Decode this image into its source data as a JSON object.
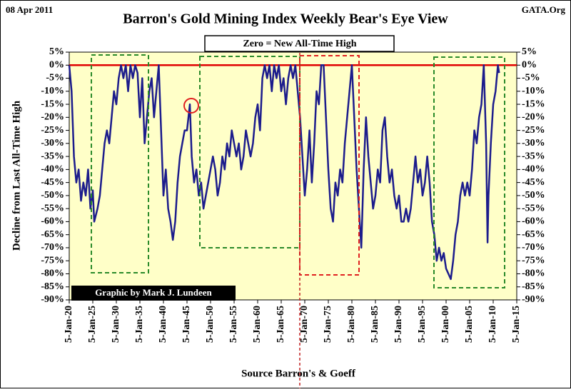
{
  "chart_data": {
    "type": "line",
    "title": "Barron's Gold Mining Index Weekly Bear's Eye View",
    "date_label": "08 Apr 2011",
    "source_label": "GATA.Org",
    "annotation": "Zero = New All-Time High",
    "credit": "Graphic by Mark J. Lundeen",
    "y_label": "Decline from Last All-Time High",
    "x_label": "Source Barron's & Goeff",
    "xlim": [
      1920,
      2015
    ],
    "xticks": [
      {
        "value": 1920,
        "label": "5-Jan-20"
      },
      {
        "value": 1925,
        "label": "5-Jan-25"
      },
      {
        "value": 1930,
        "label": "5-Jan-30"
      },
      {
        "value": 1935,
        "label": "5-Jan-35"
      },
      {
        "value": 1940,
        "label": "5-Jan-40"
      },
      {
        "value": 1945,
        "label": "5-Jan-45"
      },
      {
        "value": 1950,
        "label": "5-Jan-50"
      },
      {
        "value": 1955,
        "label": "5-Jan-55"
      },
      {
        "value": 1960,
        "label": "5-Jan-60"
      },
      {
        "value": 1965,
        "label": "5-Jan-65"
      },
      {
        "value": 1970,
        "label": "5-Jan-70"
      },
      {
        "value": 1975,
        "label": "5-Jan-75"
      },
      {
        "value": 1980,
        "label": "5-Jan-80"
      },
      {
        "value": 1985,
        "label": "5-Jan-85"
      },
      {
        "value": 1990,
        "label": "5-Jan-90"
      },
      {
        "value": 1995,
        "label": "5-Jan-95"
      },
      {
        "value": 2000,
        "label": "5-Jan-00"
      },
      {
        "value": 2005,
        "label": "5-Jan-05"
      },
      {
        "value": 2010,
        "label": "5-Jan-10"
      },
      {
        "value": 2015,
        "label": "5-Jan-15"
      }
    ],
    "ylim": [
      -90,
      5
    ],
    "yticks": [
      {
        "value": 5,
        "label": "5%"
      },
      {
        "value": 0,
        "label": "0%"
      },
      {
        "value": -5,
        "label": "-5%"
      },
      {
        "value": -10,
        "label": "-10%"
      },
      {
        "value": -15,
        "label": "-15%"
      },
      {
        "value": -20,
        "label": "-20%"
      },
      {
        "value": -25,
        "label": "-25%"
      },
      {
        "value": -30,
        "label": "-30%"
      },
      {
        "value": -35,
        "label": "-35%"
      },
      {
        "value": -40,
        "label": "-40%"
      },
      {
        "value": -45,
        "label": "-45%"
      },
      {
        "value": -50,
        "label": "-50%"
      },
      {
        "value": -55,
        "label": "-55%"
      },
      {
        "value": -60,
        "label": "-60%"
      },
      {
        "value": -65,
        "label": "-65%"
      },
      {
        "value": -70,
        "label": "-70%"
      },
      {
        "value": -75,
        "label": "-75%"
      },
      {
        "value": -80,
        "label": "-80%"
      },
      {
        "value": -85,
        "label": "-85%"
      },
      {
        "value": -90,
        "label": "-90%"
      }
    ],
    "color": "#1c1c8c",
    "x": [
      1920,
      1920.5,
      1921,
      1921.5,
      1922,
      1922.5,
      1923,
      1923.5,
      1924,
      1924.5,
      1925,
      1925.3,
      1926,
      1926.5,
      1927,
      1927.5,
      1928,
      1928.5,
      1929,
      1929.5,
      1930,
      1930.5,
      1931,
      1931.5,
      1932,
      1932.5,
      1933,
      1933.5,
      1934,
      1934.5,
      1935,
      1935.5,
      1936,
      1936.5,
      1937,
      1937.5,
      1938,
      1938.5,
      1939,
      1939.5,
      1940,
      1940.5,
      1941,
      1941.5,
      1942,
      1942.5,
      1943,
      1943.5,
      1944,
      1944.5,
      1945,
      1945.6,
      1946,
      1946.5,
      1947,
      1947.5,
      1948,
      1948.5,
      1949,
      1949.5,
      1950,
      1950.5,
      1951,
      1951.5,
      1952,
      1952.5,
      1953,
      1953.5,
      1954,
      1954.5,
      1955,
      1955.5,
      1956,
      1956.5,
      1957,
      1957.5,
      1958,
      1958.5,
      1959,
      1959.5,
      1960,
      1960.5,
      1961,
      1961.5,
      1962,
      1962.5,
      1963,
      1963.5,
      1964,
      1964.5,
      1965,
      1965.5,
      1966,
      1966.5,
      1967,
      1967.5,
      1968,
      1968.5,
      1969,
      1969.5,
      1970,
      1970.5,
      1971,
      1971.5,
      1972,
      1972.5,
      1973,
      1973.5,
      1974,
      1974.5,
      1975,
      1975.5,
      1976,
      1976.5,
      1977,
      1977.5,
      1978,
      1978.5,
      1979,
      1979.5,
      1980,
      1980.5,
      1981,
      1981.5,
      1982,
      1982.5,
      1983,
      1983.5,
      1984,
      1984.5,
      1985,
      1985.5,
      1986,
      1986.5,
      1987,
      1987.5,
      1988,
      1988.5,
      1989,
      1989.5,
      1990,
      1990.5,
      1991,
      1991.5,
      1992,
      1992.5,
      1993,
      1993.5,
      1994,
      1994.5,
      1995,
      1995.5,
      1996,
      1996.5,
      1997,
      1997.5,
      1998,
      1998.5,
      1999,
      1999.5,
      2000,
      2000.5,
      2001,
      2001.5,
      2002,
      2002.5,
      2003,
      2003.5,
      2004,
      2004.5,
      2005,
      2005.5,
      2006,
      2006.5,
      2007,
      2007.5,
      2008,
      2008.5,
      2008.8,
      2009,
      2009.5,
      2010,
      2010.5,
      2011,
      2011.25
    ],
    "values": [
      0,
      -10,
      -35,
      -45,
      -40,
      -52,
      -45,
      -50,
      -40,
      -55,
      -48,
      -60,
      -55,
      -50,
      -40,
      -30,
      -25,
      -30,
      -20,
      -10,
      -15,
      -5,
      0,
      -5,
      0,
      -10,
      0,
      -5,
      0,
      -3,
      -20,
      -5,
      -30,
      -20,
      -10,
      -5,
      -20,
      -10,
      0,
      -25,
      -50,
      -40,
      -55,
      -60,
      -67,
      -60,
      -45,
      -35,
      -30,
      -25,
      -25,
      -15,
      -35,
      -45,
      -40,
      -50,
      -45,
      -55,
      -50,
      -45,
      -40,
      -35,
      -40,
      -50,
      -45,
      -35,
      -40,
      -30,
      -35,
      -25,
      -30,
      -35,
      -30,
      -40,
      -35,
      -25,
      -30,
      -35,
      -30,
      -20,
      -15,
      -25,
      -5,
      0,
      -5,
      0,
      -10,
      0,
      -5,
      0,
      -10,
      -5,
      -15,
      -5,
      0,
      -5,
      0,
      -10,
      -20,
      -35,
      -50,
      -40,
      -25,
      -45,
      -30,
      -10,
      -15,
      0,
      0,
      -20,
      -40,
      -55,
      -60,
      -45,
      -50,
      -40,
      -45,
      -30,
      -20,
      -10,
      0,
      -20,
      -40,
      -55,
      -70,
      -40,
      -20,
      -35,
      -45,
      -55,
      -50,
      -40,
      -45,
      -25,
      -20,
      -35,
      -45,
      -40,
      -50,
      -55,
      -50,
      -60,
      -60,
      -55,
      -60,
      -55,
      -45,
      -35,
      -45,
      -40,
      -50,
      -45,
      -35,
      -45,
      -60,
      -65,
      -75,
      -70,
      -75,
      -72,
      -78,
      -80,
      -82,
      -75,
      -65,
      -60,
      -50,
      -45,
      -50,
      -45,
      -50,
      -40,
      -25,
      -30,
      -20,
      -15,
      0,
      -30,
      -68,
      -50,
      -30,
      -15,
      -10,
      0,
      -3
    ]
  }
}
